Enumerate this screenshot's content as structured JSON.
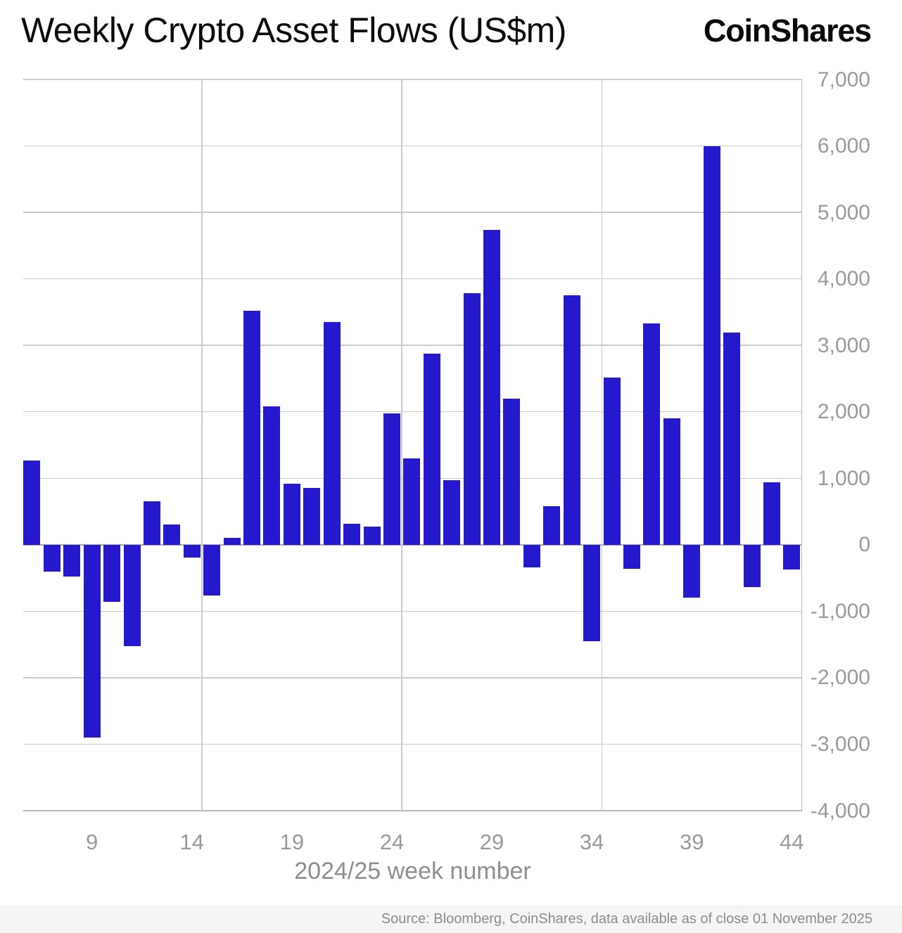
{
  "header": {
    "title": "Weekly Crypto Asset Flows (US$m)",
    "logo_text": "CoinShares"
  },
  "chart_data": {
    "type": "bar",
    "title": "Weekly Crypto Asset Flows (US$m)",
    "xlabel": "2024/25 week number",
    "ylabel": "",
    "x": [
      6,
      7,
      8,
      9,
      10,
      11,
      12,
      13,
      14,
      15,
      16,
      17,
      18,
      19,
      20,
      21,
      22,
      23,
      24,
      25,
      26,
      27,
      28,
      29,
      30,
      31,
      32,
      33,
      34,
      35,
      36,
      37,
      38,
      39,
      40,
      41,
      42,
      43,
      44
    ],
    "values": [
      1270,
      -400,
      -475,
      -2900,
      -860,
      -1530,
      650,
      310,
      -190,
      -760,
      105,
      3520,
      2080,
      915,
      855,
      3350,
      320,
      275,
      1980,
      1300,
      2880,
      970,
      3780,
      4740,
      2200,
      -345,
      580,
      3750,
      -1450,
      2520,
      -360,
      3330,
      1900,
      -790,
      6000,
      3190,
      -640,
      940,
      -370
    ],
    "x_tick_positions": [
      9,
      14,
      19,
      24,
      29,
      34,
      39,
      44
    ],
    "x_tick_labels": [
      "9",
      "14",
      "19",
      "24",
      "29",
      "34",
      "39",
      "44"
    ],
    "y_ticks": [
      7000,
      6000,
      5000,
      4000,
      3000,
      2000,
      1000,
      0,
      -1000,
      -2000,
      -3000,
      -4000
    ],
    "y_tick_labels": [
      "7,000",
      "6,000",
      "5,000",
      "4,000",
      "3,000",
      "2,000",
      "1,000",
      "0",
      "-1,000",
      "-2,000",
      "-3,000",
      "-4,000"
    ],
    "ylim": [
      -4000,
      7000
    ],
    "grid": true,
    "vgrid_weeks": [
      14.5,
      24.5,
      34.5
    ],
    "legend": "none",
    "bar_color": "#2518CD",
    "grid_color": "#cbcbcb",
    "zero_line_color": "#ababab",
    "axis_line_color": "#b9b9b9",
    "tick_text_color": "#9a9a9a"
  },
  "footer": {
    "source": "Source: Bloomberg, CoinShares, data available as of close 01 November 2025"
  }
}
